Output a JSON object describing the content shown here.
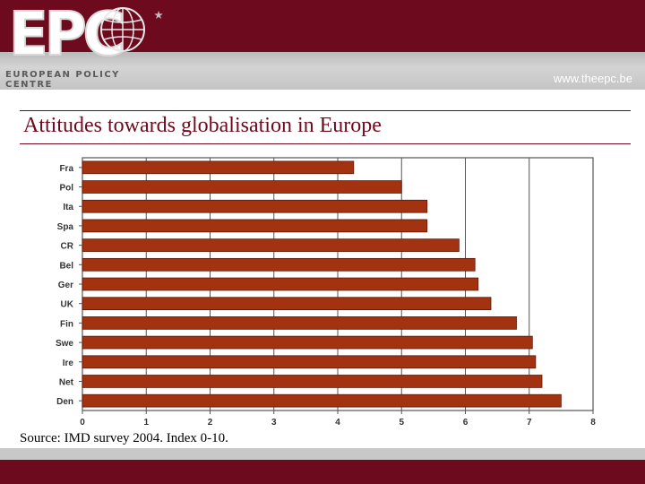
{
  "header": {
    "logo_text": "EPC",
    "logo_subtitle": "EUROPEAN POLICY CENTRE",
    "logo_star": "★",
    "url": "www.theepc.be",
    "colors": {
      "brand": "#6e0a1e",
      "band_grey": "#c4c4c4"
    }
  },
  "slide": {
    "title": "Attitudes towards globalisation in Europe",
    "source": "Source: IMD survey 2004. Index 0-10."
  },
  "chart_data": {
    "type": "bar",
    "orientation": "horizontal",
    "categories": [
      "Fra",
      "Pol",
      "Ita",
      "Spa",
      "CR",
      "Bel",
      "Ger",
      "UK",
      "Fin",
      "Swe",
      "Ire",
      "Net",
      "Den"
    ],
    "values": [
      4.25,
      5.0,
      5.4,
      5.4,
      5.9,
      6.15,
      6.2,
      6.4,
      6.8,
      7.05,
      7.1,
      7.2,
      7.5
    ],
    "xlim": [
      0,
      8
    ],
    "xticks": [
      "0",
      "1",
      "2",
      "3",
      "4",
      "5",
      "6",
      "7",
      "8"
    ],
    "grid": true,
    "bar_color": "#a33210",
    "title": "",
    "xlabel": "",
    "ylabel": ""
  }
}
